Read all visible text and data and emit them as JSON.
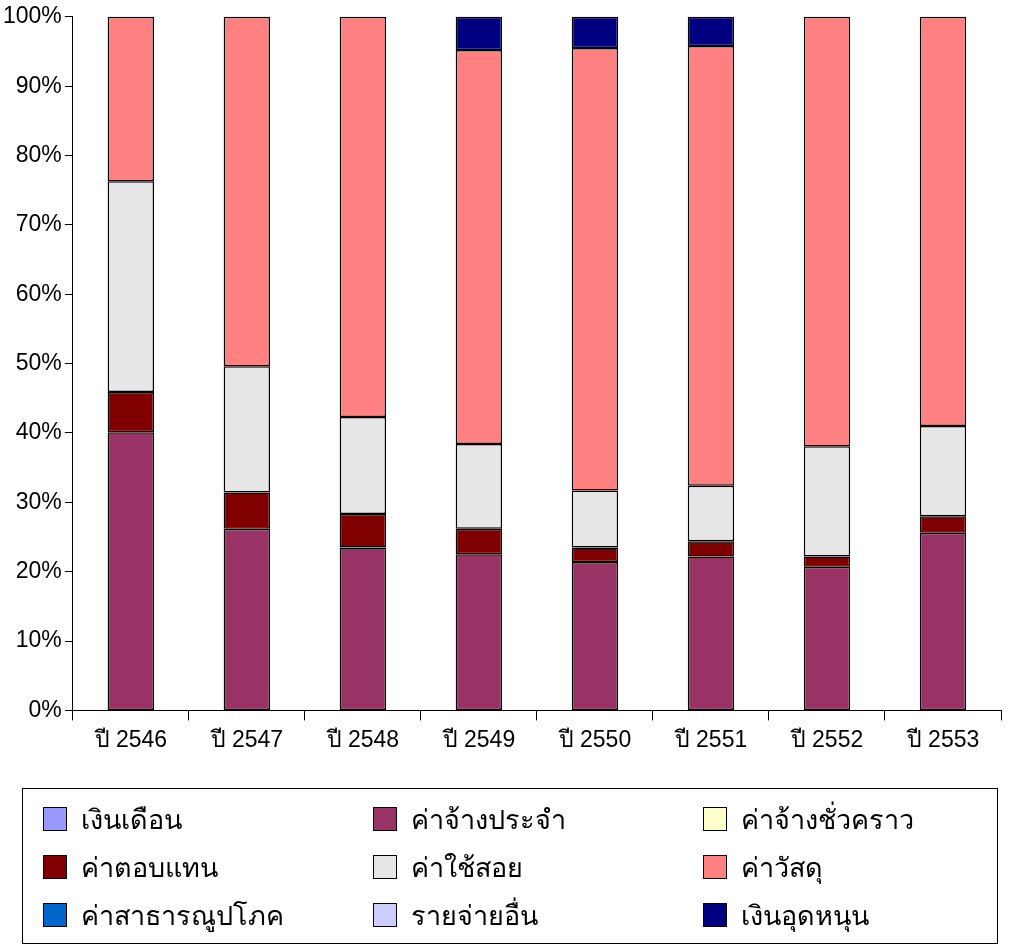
{
  "chart_data": {
    "type": "bar",
    "stacked": true,
    "categories": [
      "ปี 2546",
      "ปี 2547",
      "ปี 2548",
      "ปี 2549",
      "ปี 2550",
      "ปี 2551",
      "ปี 2552",
      "ปี 2553"
    ],
    "series": [
      {
        "name": "เงินเดือน",
        "color": "#9999ff",
        "values": [
          0,
          0,
          0,
          0,
          0,
          0,
          0,
          0
        ]
      },
      {
        "name": "ค่าจ้างประจำ",
        "color": "#993366",
        "values": [
          40.1,
          26.2,
          23.5,
          22.5,
          21.4,
          22.2,
          20.7,
          25.6
        ]
      },
      {
        "name": "ค่าจ้างชั่วคราว",
        "color": "#ffffcc",
        "values": [
          0,
          0,
          0,
          0,
          0,
          0,
          0,
          0
        ]
      },
      {
        "name": "ค่าตอบแทน",
        "color": "#800000",
        "values": [
          5.8,
          5.2,
          4.8,
          3.7,
          2.1,
          2.2,
          1.5,
          2.4
        ]
      },
      {
        "name": "ค่าใช้สอย",
        "color": "#e6e6e6",
        "values": [
          30.4,
          18.2,
          14.0,
          12.2,
          8.2,
          8.0,
          15.9,
          13.0
        ]
      },
      {
        "name": "ค่าวัสดุ",
        "color": "#ff8080",
        "values": [
          23.7,
          50.4,
          57.7,
          56.8,
          63.8,
          63.4,
          61.9,
          59.0
        ]
      },
      {
        "name": "ค่าสาธารณูปโภค",
        "color": "#0066cc",
        "values": [
          0,
          0,
          0,
          0,
          0,
          0,
          0,
          0
        ]
      },
      {
        "name": "รายจ่ายอื่น",
        "color": "#ccccff",
        "values": [
          0,
          0,
          0,
          0,
          0,
          0,
          0,
          0
        ]
      },
      {
        "name": "เงินอุดหนุน",
        "color": "#000080",
        "values": [
          0,
          0,
          0,
          4.8,
          4.5,
          4.2,
          0,
          0
        ]
      }
    ],
    "ylim": [
      0,
      100
    ],
    "yticks": [
      {
        "value": 0,
        "label": "0%"
      },
      {
        "value": 10,
        "label": "10%"
      },
      {
        "value": 20,
        "label": "20%"
      },
      {
        "value": 30,
        "label": "30%"
      },
      {
        "value": 40,
        "label": "40%"
      },
      {
        "value": 50,
        "label": "50%"
      },
      {
        "value": 60,
        "label": "60%"
      },
      {
        "value": 70,
        "label": "70%"
      },
      {
        "value": 80,
        "label": "80%"
      },
      {
        "value": 90,
        "label": "90%"
      },
      {
        "value": 100,
        "label": "100%"
      }
    ],
    "grid": false,
    "legend": "bottom"
  }
}
